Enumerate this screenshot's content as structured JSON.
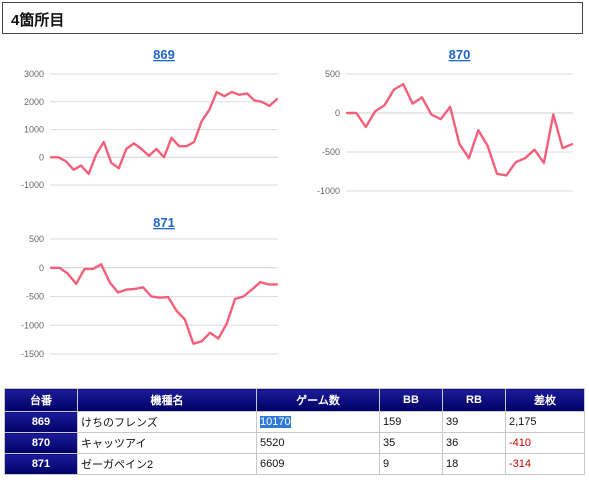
{
  "header": {
    "title": "4箇所目"
  },
  "colors": {
    "series": "#f4607a",
    "header_bg": "#000066",
    "link": "#1f66c9",
    "negative": "#cc0000"
  },
  "chart_data": [
    {
      "type": "line",
      "title": "869",
      "ylim": [
        -1000,
        3000
      ],
      "yticks": [
        -1000,
        0,
        1000,
        2000,
        3000
      ],
      "grid": true,
      "series": [
        {
          "values": [
            0,
            0,
            -150,
            -450,
            -300,
            -600,
            100,
            550,
            -200,
            -400,
            300,
            500,
            300,
            50,
            300,
            0,
            700,
            400,
            400,
            550,
            1300,
            1700,
            2350,
            2200,
            2350,
            2250,
            2300,
            2050,
            2000,
            1850,
            2100
          ]
        }
      ]
    },
    {
      "type": "line",
      "title": "870",
      "ylim": [
        -1000,
        500
      ],
      "yticks": [
        -1000,
        -500,
        0,
        500
      ],
      "grid": true,
      "series": [
        {
          "values": [
            0,
            0,
            -180,
            20,
            100,
            300,
            370,
            120,
            200,
            -20,
            -80,
            80,
            -400,
            -580,
            -220,
            -420,
            -780,
            -800,
            -630,
            -580,
            -470,
            -640,
            -20,
            -450,
            -400
          ]
        }
      ]
    },
    {
      "type": "line",
      "title": "871",
      "ylim": [
        -1500,
        500
      ],
      "yticks": [
        -1500,
        -1000,
        -500,
        0,
        500
      ],
      "grid": true,
      "series": [
        {
          "values": [
            0,
            0,
            -100,
            -280,
            -20,
            -20,
            60,
            -250,
            -430,
            -380,
            -370,
            -340,
            -500,
            -520,
            -510,
            -750,
            -900,
            -1320,
            -1280,
            -1130,
            -1230,
            -970,
            -540,
            -500,
            -380,
            -250,
            -290,
            -290
          ]
        }
      ]
    }
  ],
  "table": {
    "headers": [
      "台番",
      "機種名",
      "ゲーム数",
      "BB",
      "RB",
      "差枚"
    ],
    "rows": [
      {
        "unit": "869",
        "name": "けちのフレンズ",
        "games": "10170",
        "bb": "159",
        "rb": "39",
        "diff": "2,175"
      },
      {
        "unit": "870",
        "name": "キャッツアイ",
        "games": "5520",
        "bb": "35",
        "rb": "36",
        "diff": "-410"
      },
      {
        "unit": "871",
        "name": "ゼーガペイン2",
        "games": "6609",
        "bb": "9",
        "rb": "18",
        "diff": "-314"
      }
    ]
  }
}
